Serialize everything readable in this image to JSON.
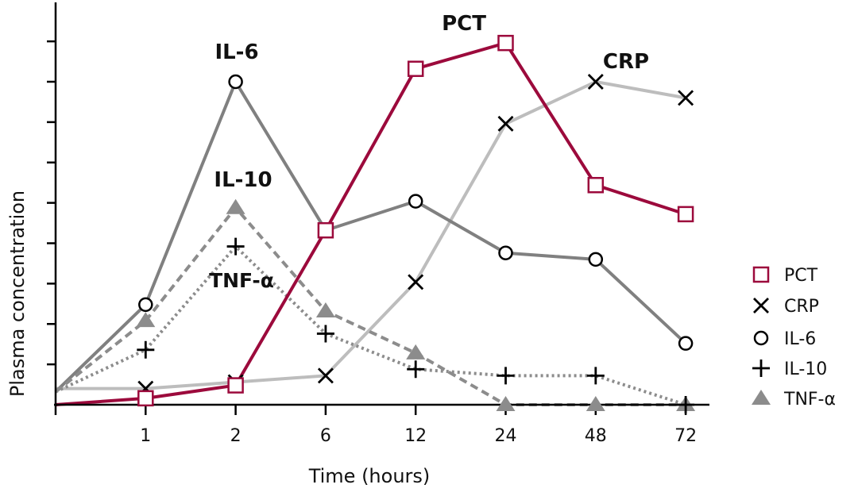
{
  "chart_data": {
    "type": "line",
    "title": "",
    "xlabel": "Time (hours)",
    "ylabel": "Plasma concentration",
    "categories": [
      "1",
      "2",
      "6",
      "12",
      "24",
      "48",
      "72"
    ],
    "ylim": [
      0,
      100
    ],
    "grid": false,
    "legend_position": "right",
    "series": [
      {
        "name": "PCT",
        "marker": "open-square",
        "line_style": "solid",
        "color": "#9c0a3c",
        "start": 0,
        "values": [
          2,
          6,
          54,
          104,
          112,
          68,
          59
        ],
        "annotation": "PCT"
      },
      {
        "name": "CRP",
        "marker": "x",
        "line_style": "solid",
        "color": "#bdbdbd",
        "start": 5,
        "values": [
          5,
          7,
          9,
          38,
          87,
          100,
          95
        ],
        "annotation": "CRP"
      },
      {
        "name": "IL-6",
        "marker": "open-circle",
        "line_style": "solid",
        "color": "#808080",
        "start": 4,
        "values": [
          31,
          100,
          54,
          63,
          47,
          45,
          19
        ],
        "annotation": "IL-6"
      },
      {
        "name": "IL-10",
        "marker": "plus",
        "line_style": "dotted",
        "color": "#8c8c8c",
        "start": 4,
        "values": [
          17,
          49,
          22,
          11,
          9,
          9,
          0
        ],
        "annotation": "IL-10"
      },
      {
        "name": "TNF-α",
        "marker": "filled-triangle",
        "line_style": "dashed",
        "color": "#8c8c8c",
        "start": 4,
        "values": [
          26,
          61,
          29,
          16,
          0,
          0,
          0
        ],
        "annotation": "TNF-α"
      }
    ]
  }
}
